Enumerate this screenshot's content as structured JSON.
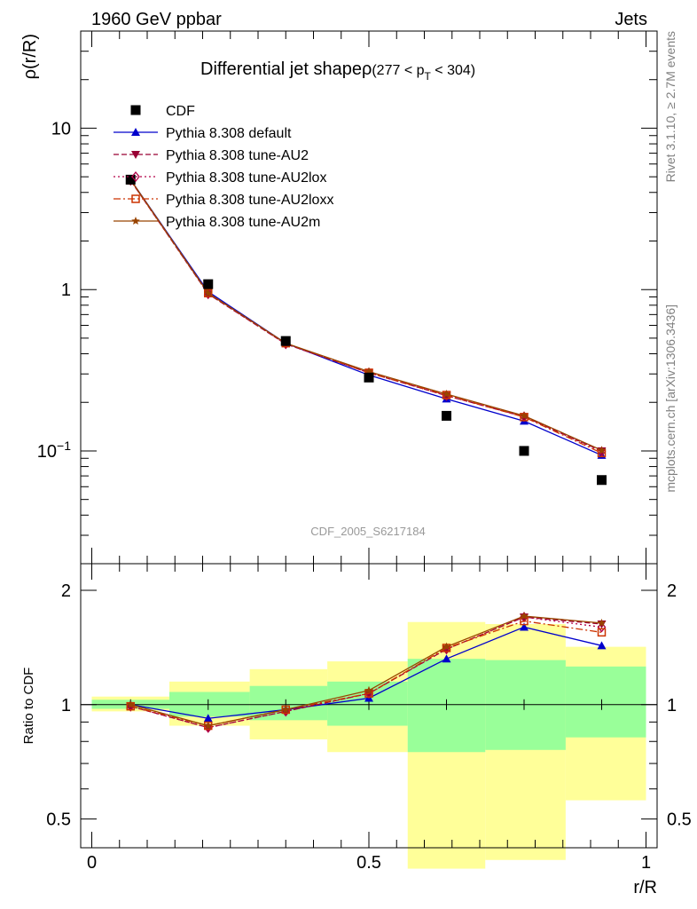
{
  "header": {
    "left": "1960 GeV ppbar",
    "right": "Jets"
  },
  "side_labels": {
    "rivet": "Rivet 3.1.10, ≥ 2.7M events",
    "mcplots": "mcplots.cern.ch [arXiv:1306.3436]"
  },
  "colors": {
    "cdf": "#000000",
    "default": "#0000cc",
    "AU2": "#990033",
    "AU2lox": "#b30047",
    "AU2loxx": "#cc3300",
    "AU2m": "#994400",
    "band_green": "#99ff99",
    "band_yellow": "#ffff99"
  },
  "chart_data": [
    {
      "type": "line",
      "title": "Differential jet shapeρ",
      "title_range": "(277 < p",
      "title_sub": "T",
      "title_end": " < 304)",
      "ylabel": "ρ(r/R)",
      "yscale": "log",
      "ylim": [
        0.02,
        40
      ],
      "xlim": [
        -0.02,
        1.02
      ],
      "yticks": [
        {
          "value": 10,
          "label": "10",
          "sup": ""
        },
        {
          "value": 1,
          "label": "1",
          "sup": ""
        },
        {
          "value": 0.1,
          "label": "10",
          "sup": "−1"
        }
      ],
      "watermark": "CDF_2005_S6217184",
      "x": [
        0.07,
        0.21,
        0.35,
        0.5,
        0.64,
        0.78,
        0.92
      ],
      "series": [
        {
          "name": "CDF",
          "marker": "square",
          "color": "#000000",
          "values": [
            4.8,
            1.08,
            0.48,
            0.285,
            0.165,
            0.1,
            0.066
          ]
        },
        {
          "name": "Pythia 8.308 default",
          "marker": "triangle-up",
          "dash": "",
          "color": "#0000cc",
          "values": [
            4.8,
            0.97,
            0.465,
            0.295,
            0.21,
            0.153,
            0.094
          ]
        },
        {
          "name": "Pythia 8.308 tune-AU2",
          "marker": "triangle-down",
          "dash": "6,3",
          "color": "#990033",
          "values": [
            4.75,
            0.94,
            0.46,
            0.305,
            0.22,
            0.163,
            0.1
          ]
        },
        {
          "name": "Pythia 8.308 tune-AU2lox",
          "marker": "diamond",
          "dash": "2,3",
          "color": "#b30047",
          "values": [
            4.75,
            0.94,
            0.46,
            0.305,
            0.22,
            0.163,
            0.099
          ]
        },
        {
          "name": "Pythia 8.308 tune-AU2loxx",
          "marker": "square-open",
          "dash": "8,3,2,3",
          "color": "#cc3300",
          "values": [
            4.76,
            0.95,
            0.465,
            0.305,
            0.222,
            0.162,
            0.097
          ]
        },
        {
          "name": "Pythia 8.308 tune-AU2m",
          "marker": "star",
          "dash": "",
          "color": "#994400",
          "values": [
            4.8,
            0.95,
            0.465,
            0.31,
            0.225,
            0.165,
            0.101
          ]
        }
      ]
    },
    {
      "type": "line",
      "ylabel": "Ratio to CDF",
      "xlabel": "r/R",
      "yscale": "log",
      "ylim": [
        0.42,
        2.35
      ],
      "xlim": [
        -0.02,
        1.02
      ],
      "yticks": [
        {
          "value": 2,
          "label": "2"
        },
        {
          "value": 1,
          "label": "1"
        },
        {
          "value": 0.5,
          "label": "0.5"
        }
      ],
      "xticks": [
        {
          "value": 0,
          "label": "0"
        },
        {
          "value": 0.5,
          "label": "0.5"
        },
        {
          "value": 1,
          "label": "1"
        }
      ],
      "bands": [
        {
          "x0": 0.0,
          "x1": 0.14,
          "green": [
            0.975,
            1.03
          ],
          "yellow": [
            0.96,
            1.05
          ]
        },
        {
          "x0": 0.14,
          "x1": 0.285,
          "green": [
            0.93,
            1.08
          ],
          "yellow": [
            0.88,
            1.15
          ]
        },
        {
          "x0": 0.285,
          "x1": 0.425,
          "green": [
            0.91,
            1.12
          ],
          "yellow": [
            0.81,
            1.24
          ]
        },
        {
          "x0": 0.425,
          "x1": 0.57,
          "green": [
            0.88,
            1.15
          ],
          "yellow": [
            0.75,
            1.3
          ]
        },
        {
          "x0": 0.57,
          "x1": 0.71,
          "green": [
            0.75,
            1.32
          ],
          "yellow": [
            0.37,
            1.65
          ]
        },
        {
          "x0": 0.71,
          "x1": 0.855,
          "green": [
            0.76,
            1.31
          ],
          "yellow": [
            0.39,
            1.63
          ]
        },
        {
          "x0": 0.855,
          "x1": 1.0,
          "green": [
            0.82,
            1.26
          ],
          "yellow": [
            0.56,
            1.42
          ]
        }
      ],
      "x": [
        0.07,
        0.21,
        0.35,
        0.5,
        0.64,
        0.78,
        0.92
      ],
      "series": [
        {
          "name": "Pythia 8.308 default",
          "marker": "triangle-up",
          "dash": "",
          "color": "#0000cc",
          "values": [
            1.0,
            0.92,
            0.97,
            1.04,
            1.32,
            1.6,
            1.43
          ]
        },
        {
          "name": "Pythia 8.308 tune-AU2",
          "marker": "triangle-down",
          "dash": "6,3",
          "color": "#990033",
          "values": [
            0.99,
            0.87,
            0.96,
            1.07,
            1.4,
            1.7,
            1.63
          ]
        },
        {
          "name": "Pythia 8.308 tune-AU2lox",
          "marker": "diamond",
          "dash": "2,3",
          "color": "#b30047",
          "values": [
            0.99,
            0.87,
            0.96,
            1.07,
            1.4,
            1.7,
            1.6
          ]
        },
        {
          "name": "Pythia 8.308 tune-AU2loxx",
          "marker": "square-open",
          "dash": "8,3,2,3",
          "color": "#cc3300",
          "values": [
            0.99,
            0.88,
            0.97,
            1.07,
            1.41,
            1.66,
            1.55
          ]
        },
        {
          "name": "Pythia 8.308 tune-AU2m",
          "marker": "star",
          "dash": "",
          "color": "#994400",
          "values": [
            1.0,
            0.88,
            0.97,
            1.09,
            1.42,
            1.71,
            1.64
          ]
        }
      ]
    }
  ]
}
